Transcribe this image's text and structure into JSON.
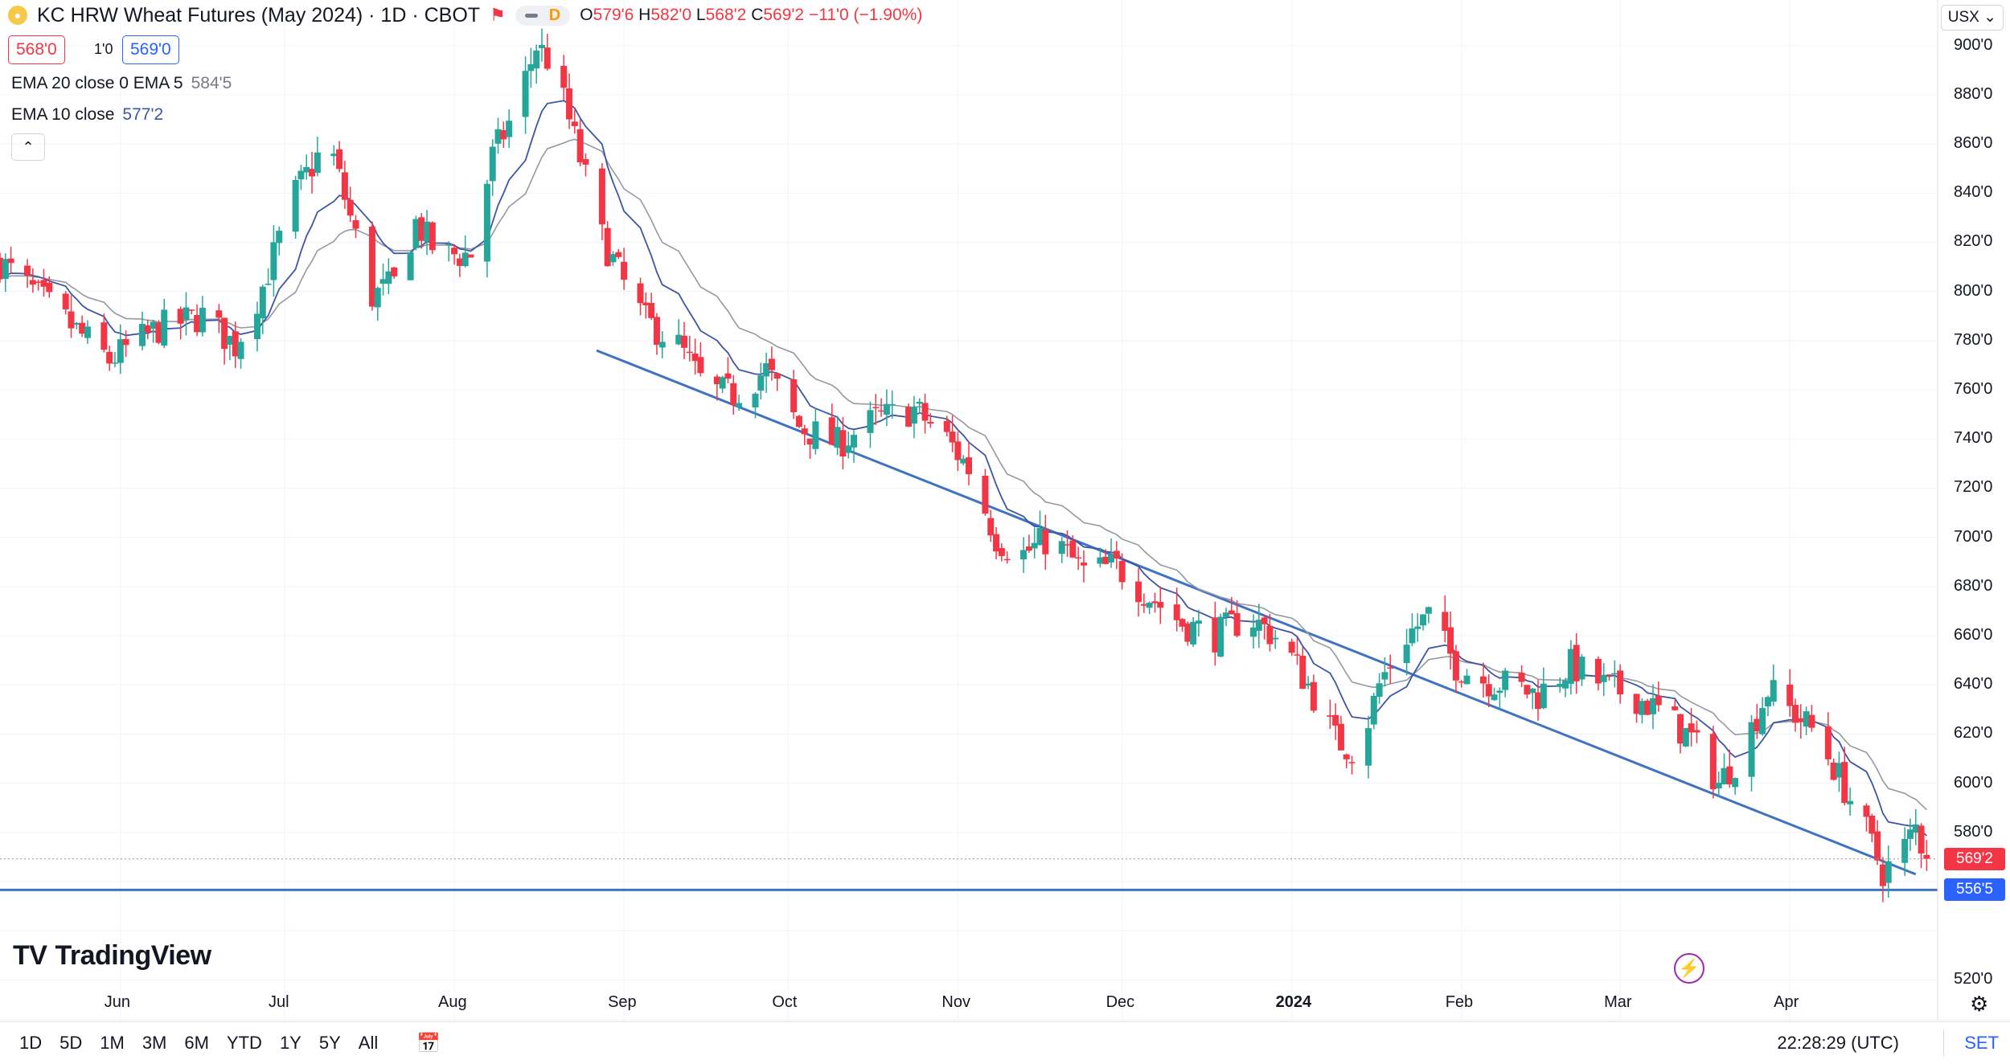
{
  "header": {
    "symbol_title": "KC HRW Wheat Futures (May 2024) · 1D · CBOT",
    "pill_label": "D",
    "ohlc": {
      "o_label": "O",
      "o": "579'6",
      "h_label": "H",
      "h": "582'0",
      "l_label": "L",
      "l": "568'2",
      "c_label": "C",
      "c": "569'2",
      "change": "−11'0 (−1.90%)"
    }
  },
  "trade": {
    "sell_price": "568'0",
    "spread": "1'0",
    "buy_price": "569'0"
  },
  "indicators": {
    "ema20_label": "EMA 20 close 0 EMA 5",
    "ema20_value": "584'5",
    "ema10_label": "EMA 10 close",
    "ema10_value": "577'2"
  },
  "currency_button": "USX ⌄",
  "brand": "TradingView",
  "time_ranges": [
    "1D",
    "5D",
    "1M",
    "3M",
    "6M",
    "YTD",
    "1Y",
    "5Y",
    "All"
  ],
  "clock": "22:28:29 (UTC)",
  "set_label": "SET",
  "colors": {
    "up": "#26a69a",
    "down": "#f23645",
    "trendline": "#3f72c4",
    "ema10": "#3d55a6",
    "ema20": "#9598a1",
    "last_price_tag": "#f23645",
    "support_tag": "#2962ff"
  },
  "chart_data": {
    "type": "candlestick",
    "ylim": [
      510,
      912
    ],
    "y_ticks": [
      520,
      540,
      560,
      580,
      600,
      620,
      640,
      660,
      680,
      700,
      720,
      740,
      760,
      780,
      800,
      820,
      840,
      860,
      880,
      900
    ],
    "y_tick_labels": [
      "520'0",
      "",
      "",
      "580'0",
      "600'0",
      "620'0",
      "640'0",
      "660'0",
      "680'0",
      "700'0",
      "720'0",
      "740'0",
      "760'0",
      "780'0",
      "800'0",
      "820'0",
      "840'0",
      "860'0",
      "880'0",
      "900'0"
    ],
    "x_labels": [
      {
        "date": "2023-06-01",
        "label": "Jun"
      },
      {
        "date": "2023-07-01",
        "label": "Jul"
      },
      {
        "date": "2023-08-01",
        "label": "Aug"
      },
      {
        "date": "2023-09-01",
        "label": "Sep"
      },
      {
        "date": "2023-10-01",
        "label": "Oct"
      },
      {
        "date": "2023-11-01",
        "label": "Nov"
      },
      {
        "date": "2023-12-01",
        "label": "Dec"
      },
      {
        "date": "2024-01-01",
        "label": "2024"
      },
      {
        "date": "2024-02-01",
        "label": "Feb"
      },
      {
        "date": "2024-03-01",
        "label": "Mar"
      },
      {
        "date": "2024-04-01",
        "label": "Apr"
      }
    ],
    "x_range": [
      "2023-05-10",
      "2024-04-28"
    ],
    "last_price": 569.25,
    "last_price_label": "569'2",
    "support_price": 556.625,
    "support_label": "556'5",
    "trendline": {
      "start": {
        "date": "2023-08-27",
        "price": 776
      },
      "end": {
        "date": "2024-04-24",
        "price": 563
      }
    },
    "closes": [
      {
        "date": "2023-05-10",
        "close": 812
      },
      {
        "date": "2023-05-20",
        "close": 792
      },
      {
        "date": "2023-05-30",
        "close": 772
      },
      {
        "date": "2023-06-08",
        "close": 785
      },
      {
        "date": "2023-06-16",
        "close": 790
      },
      {
        "date": "2023-06-22",
        "close": 778
      },
      {
        "date": "2023-06-27",
        "close": 802
      },
      {
        "date": "2023-07-03",
        "close": 840
      },
      {
        "date": "2023-07-09",
        "close": 862
      },
      {
        "date": "2023-07-13",
        "close": 830
      },
      {
        "date": "2023-07-17",
        "close": 798
      },
      {
        "date": "2023-07-21",
        "close": 803
      },
      {
        "date": "2023-07-25",
        "close": 828
      },
      {
        "date": "2023-07-29",
        "close": 815
      },
      {
        "date": "2023-08-04",
        "close": 815
      },
      {
        "date": "2023-08-08",
        "close": 855
      },
      {
        "date": "2023-08-12",
        "close": 873
      },
      {
        "date": "2023-08-16",
        "close": 900
      },
      {
        "date": "2023-08-19",
        "close": 892
      },
      {
        "date": "2023-08-23",
        "close": 862
      },
      {
        "date": "2023-08-28",
        "close": 822
      },
      {
        "date": "2023-09-01",
        "close": 803
      },
      {
        "date": "2023-09-05",
        "close": 788
      },
      {
        "date": "2023-09-11",
        "close": 778
      },
      {
        "date": "2023-09-16",
        "close": 760
      },
      {
        "date": "2023-09-21",
        "close": 758
      },
      {
        "date": "2023-09-27",
        "close": 768
      },
      {
        "date": "2023-10-03",
        "close": 745
      },
      {
        "date": "2023-10-10",
        "close": 738
      },
      {
        "date": "2023-10-17",
        "close": 748
      },
      {
        "date": "2023-10-24",
        "close": 752
      },
      {
        "date": "2023-10-30",
        "close": 740
      },
      {
        "date": "2023-11-03",
        "close": 728
      },
      {
        "date": "2023-11-08",
        "close": 700
      },
      {
        "date": "2023-11-12",
        "close": 692
      },
      {
        "date": "2023-11-18",
        "close": 700
      },
      {
        "date": "2023-11-24",
        "close": 686
      },
      {
        "date": "2023-11-30",
        "close": 688
      },
      {
        "date": "2023-12-06",
        "close": 676
      },
      {
        "date": "2023-12-12",
        "close": 665
      },
      {
        "date": "2023-12-18",
        "close": 660
      },
      {
        "date": "2023-12-24",
        "close": 668
      },
      {
        "date": "2023-12-30",
        "close": 658
      },
      {
        "date": "2024-01-04",
        "close": 640
      },
      {
        "date": "2024-01-09",
        "close": 618
      },
      {
        "date": "2024-01-13",
        "close": 612
      },
      {
        "date": "2024-01-17",
        "close": 640
      },
      {
        "date": "2024-01-21",
        "close": 658
      },
      {
        "date": "2024-01-26",
        "close": 668
      },
      {
        "date": "2024-01-31",
        "close": 648
      },
      {
        "date": "2024-02-05",
        "close": 642
      },
      {
        "date": "2024-02-10",
        "close": 640
      },
      {
        "date": "2024-02-15",
        "close": 636
      },
      {
        "date": "2024-02-21",
        "close": 648
      },
      {
        "date": "2024-02-27",
        "close": 640
      },
      {
        "date": "2024-03-04",
        "close": 635
      },
      {
        "date": "2024-03-09",
        "close": 628
      },
      {
        "date": "2024-03-14",
        "close": 618
      },
      {
        "date": "2024-03-19",
        "close": 600
      },
      {
        "date": "2024-03-23",
        "close": 612
      },
      {
        "date": "2024-03-28",
        "close": 638
      },
      {
        "date": "2024-04-02",
        "close": 628
      },
      {
        "date": "2024-04-06",
        "close": 620
      },
      {
        "date": "2024-04-11",
        "close": 598
      },
      {
        "date": "2024-04-15",
        "close": 580
      },
      {
        "date": "2024-04-18",
        "close": 564
      },
      {
        "date": "2024-04-21",
        "close": 570
      },
      {
        "date": "2024-04-24",
        "close": 582
      },
      {
        "date": "2024-04-26",
        "close": 569
      }
    ],
    "date_scale_note": "dates indicate relative bar positions along the Jun 2023 – Apr 2024 time axis"
  }
}
